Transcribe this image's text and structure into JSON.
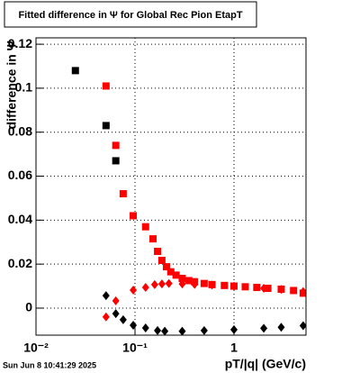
{
  "chart_data": {
    "type": "scatter",
    "title": "Fitted difference in  Ψ  for Global Rec Pion EtapT",
    "x_label": "pT/|q| (GeV/c)",
    "y_label": "difference in  Ψ",
    "timestamp": "Sun Jun  8 10:41:29 2025",
    "xlog": true,
    "grid": true,
    "xlim": [
      0.01,
      5.34
    ],
    "ylim": [
      -0.0123,
      0.1229
    ],
    "xticks": [
      {
        "value": 0.01,
        "label": "10⁻²"
      },
      {
        "value": 0.1,
        "label": "10⁻¹"
      },
      1
    ],
    "yticks": [
      0,
      0.02,
      0.04,
      0.06,
      0.08,
      0.1,
      0.12
    ],
    "series": [
      {
        "color": "#000000",
        "marker": "square",
        "x": [
          0.025,
          0.051,
          0.064
        ],
        "values": [
          0.108,
          0.083,
          0.067
        ]
      },
      {
        "color": "#ff0000",
        "marker": "square",
        "x": [
          0.051,
          0.064,
          0.076,
          0.096,
          0.128,
          0.152,
          0.169,
          0.187,
          0.208,
          0.23,
          0.26,
          0.3,
          0.35,
          0.4,
          0.5,
          0.6,
          0.8,
          1,
          1.3,
          1.7,
          2.2,
          3,
          4,
          5
        ],
        "values": [
          0.101,
          0.074,
          0.052,
          0.042,
          0.037,
          0.0315,
          0.0258,
          0.0217,
          0.0188,
          0.0165,
          0.015,
          0.0135,
          0.0125,
          0.012,
          0.0112,
          0.0107,
          0.0103,
          0.01,
          0.0097,
          0.0094,
          0.009,
          0.0086,
          0.008,
          0.0068
        ]
      },
      {
        "color": "#ff0000",
        "marker": "diamond",
        "x": [
          0.051,
          0.064,
          0.096,
          0.128,
          0.158,
          0.187,
          0.22,
          0.3,
          0.4,
          0.6,
          1,
          2,
          3,
          5
        ],
        "values": [
          -0.004,
          0.0033,
          0.0082,
          0.0094,
          0.0107,
          0.011,
          0.0112,
          0.011,
          0.0108,
          0.0105,
          0.01,
          0.009,
          0.0085,
          0.0075
        ]
      },
      {
        "color": "#000000",
        "marker": "diamond",
        "x": [
          0.051,
          0.064,
          0.076,
          0.096,
          0.128,
          0.169,
          0.2,
          0.3,
          0.5,
          1,
          2,
          3,
          5
        ],
        "values": [
          0.0057,
          -0.0025,
          -0.0053,
          -0.0078,
          -0.009,
          -0.0102,
          -0.0105,
          -0.0105,
          -0.0102,
          -0.0098,
          -0.0092,
          -0.0087,
          -0.008
        ]
      }
    ]
  }
}
